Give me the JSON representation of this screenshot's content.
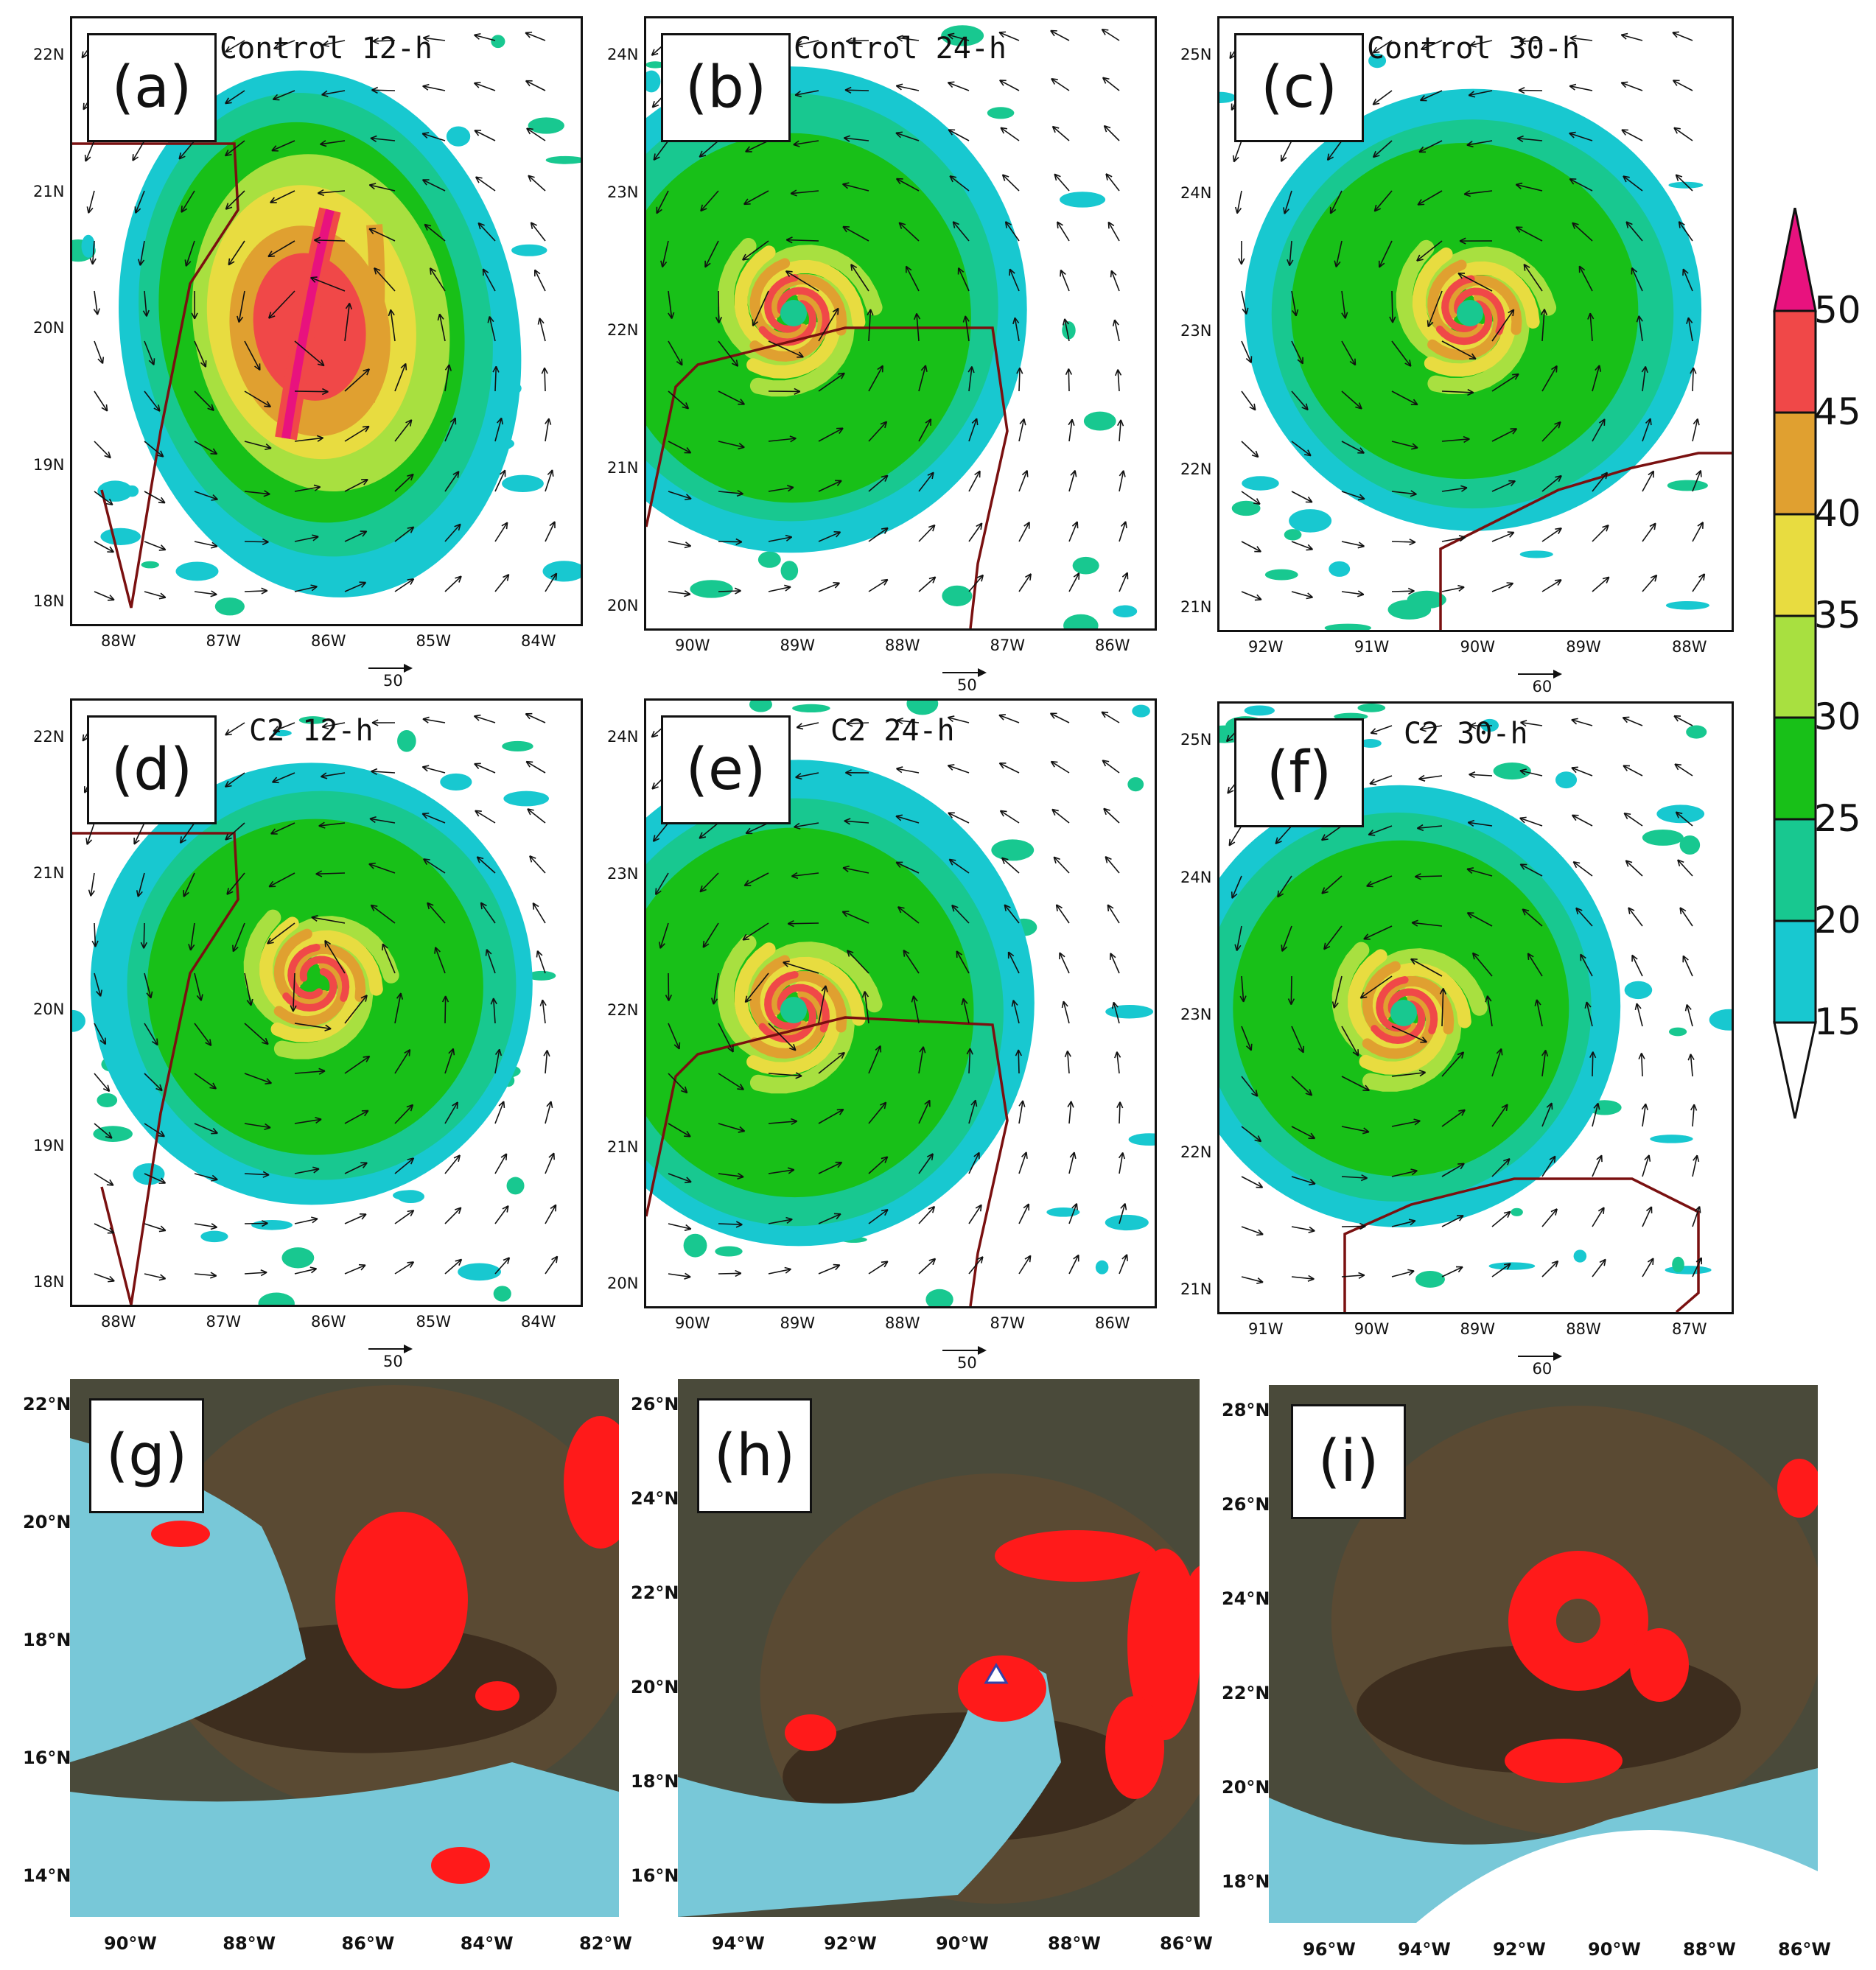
{
  "panels": [
    {
      "id": "a",
      "label": "(a)",
      "title": "Control 12-h",
      "kind": "model",
      "xticks": [
        "88W",
        "87W",
        "86W",
        "85W",
        "84W"
      ],
      "yticks": [
        "22N",
        "21N",
        "20N",
        "19N",
        "18N"
      ],
      "ref": "50"
    },
    {
      "id": "b",
      "label": "(b)",
      "title": "Control 24-h",
      "kind": "model",
      "xticks": [
        "90W",
        "89W",
        "88W",
        "87W",
        "86W"
      ],
      "yticks": [
        "24N",
        "23N",
        "22N",
        "21N",
        "20N"
      ],
      "ref": "50"
    },
    {
      "id": "c",
      "label": "(c)",
      "title": "Control 30-h",
      "kind": "model",
      "xticks": [
        "92W",
        "91W",
        "90W",
        "89W",
        "88W"
      ],
      "yticks": [
        "25N",
        "24N",
        "23N",
        "22N",
        "21N"
      ],
      "ref": "60"
    },
    {
      "id": "d",
      "label": "(d)",
      "title": "C2 12-h",
      "kind": "model",
      "xticks": [
        "88W",
        "87W",
        "86W",
        "85W",
        "84W"
      ],
      "yticks": [
        "22N",
        "21N",
        "20N",
        "19N",
        "18N"
      ],
      "ref": "50"
    },
    {
      "id": "e",
      "label": "(e)",
      "title": "C2 24-h",
      "kind": "model",
      "xticks": [
        "90W",
        "89W",
        "88W",
        "87W",
        "86W"
      ],
      "yticks": [
        "24N",
        "23N",
        "22N",
        "21N",
        "20N"
      ],
      "ref": "50"
    },
    {
      "id": "f",
      "label": "(f)",
      "title": "C2 30-h",
      "kind": "model",
      "xticks": [
        "91W",
        "90W",
        "89W",
        "88W",
        "87W"
      ],
      "yticks": [
        "25N",
        "24N",
        "23N",
        "22N",
        "21N"
      ],
      "ref": "60"
    },
    {
      "id": "g",
      "label": "(g)",
      "title": "",
      "kind": "satellite",
      "xticks": [
        "90°W",
        "88°W",
        "86°W",
        "84°W",
        "82°W"
      ],
      "yticks": [
        "22°N",
        "20°N",
        "18°N",
        "16°N",
        "14°N"
      ],
      "ref": ""
    },
    {
      "id": "h",
      "label": "(h)",
      "title": "",
      "kind": "satellite",
      "xticks": [
        "94°W",
        "92°W",
        "90°W",
        "88°W",
        "86°W"
      ],
      "yticks": [
        "26°N",
        "24°N",
        "22°N",
        "20°N",
        "18°N",
        "16°N"
      ],
      "ref": ""
    },
    {
      "id": "i",
      "label": "(i)",
      "title": "",
      "kind": "satellite",
      "xticks": [
        "96°W",
        "94°W",
        "92°W",
        "90°W",
        "88°W",
        "86°W"
      ],
      "yticks": [
        "28°N",
        "26°N",
        "24°N",
        "22°N",
        "20°N",
        "18°N"
      ],
      "ref": ""
    }
  ],
  "colorbar": {
    "levels": [
      "50",
      "45",
      "40",
      "35",
      "30",
      "25",
      "20",
      "15"
    ],
    "colors": [
      "#e8127e",
      "#f04848",
      "#e0a030",
      "#e8dc40",
      "#a8e040",
      "#18c018",
      "#18c890",
      "#18c8d0",
      "#ffffff"
    ]
  },
  "chart_data": [
    {
      "type": "heatmap",
      "panel": "a",
      "title": "Control 12-h",
      "x_range": [
        "88.6W",
        "83.7W"
      ],
      "y_range": [
        "17.7N",
        "22.5N"
      ],
      "colorbar_levels": [
        15,
        20,
        25,
        30,
        35,
        40,
        45,
        50
      ],
      "wind_vector_reference": 50,
      "approx_center": [
        "86.3W",
        "19.8N"
      ]
    },
    {
      "type": "heatmap",
      "panel": "b",
      "title": "Control 24-h",
      "x_range": [
        "90.6W",
        "85.7W"
      ],
      "y_range": [
        "19.5N",
        "24.3N"
      ],
      "colorbar_levels": [
        15,
        20,
        25,
        30,
        35,
        40,
        45,
        50
      ],
      "wind_vector_reference": 50,
      "approx_center": [
        "88.9W",
        "21.9N"
      ]
    },
    {
      "type": "heatmap",
      "panel": "c",
      "title": "Control 30-h",
      "x_range": [
        "92.5W",
        "87.6W"
      ],
      "y_range": [
        "20.4N",
        "25.3N"
      ],
      "colorbar_levels": [
        15,
        20,
        25,
        30,
        35,
        40,
        45,
        50
      ],
      "wind_vector_reference": 60,
      "approx_center": [
        "90.1W",
        "22.8N"
      ]
    },
    {
      "type": "heatmap",
      "panel": "d",
      "title": "C2 12-h",
      "x_range": [
        "88.6W",
        "83.7W"
      ],
      "y_range": [
        "17.7N",
        "22.5N"
      ],
      "colorbar_levels": [
        15,
        20,
        25,
        30,
        35,
        40,
        45,
        50
      ],
      "wind_vector_reference": 50,
      "approx_center": [
        "86.4W",
        "20.0N"
      ]
    },
    {
      "type": "heatmap",
      "panel": "e",
      "title": "C2 24-h",
      "x_range": [
        "90.6W",
        "85.7W"
      ],
      "y_range": [
        "19.5N",
        "24.3N"
      ],
      "colorbar_levels": [
        15,
        20,
        25,
        30,
        35,
        40,
        45,
        50
      ],
      "wind_vector_reference": 50,
      "approx_center": [
        "88.9W",
        "21.7N"
      ]
    },
    {
      "type": "heatmap",
      "panel": "f",
      "title": "C2 30-h",
      "x_range": [
        "91.5W",
        "86.6W"
      ],
      "y_range": [
        "20.5N",
        "25.3N"
      ],
      "colorbar_levels": [
        15,
        20,
        25,
        30,
        35,
        40,
        45,
        50
      ],
      "wind_vector_reference": 60,
      "approx_center": [
        "90.1W",
        "22.8N"
      ]
    },
    {
      "type": "heatmap",
      "panel": "g",
      "x_range": [
        "92°W",
        "82°W"
      ],
      "y_range": [
        "13°N",
        "23°N"
      ],
      "approx_center": [
        "85.3°W",
        "19.3°N"
      ]
    },
    {
      "type": "heatmap",
      "panel": "h",
      "x_range": [
        "95°W",
        "85°W"
      ],
      "y_range": [
        "15°N",
        "26°N"
      ],
      "approx_center": [
        "88.5°W",
        "20.5°N"
      ]
    },
    {
      "type": "heatmap",
      "panel": "i",
      "x_range": [
        "97°W",
        "85.5°W"
      ],
      "y_range": [
        "16.5°N",
        "28°N"
      ],
      "approx_center": [
        "91°W",
        "23°N"
      ]
    }
  ]
}
